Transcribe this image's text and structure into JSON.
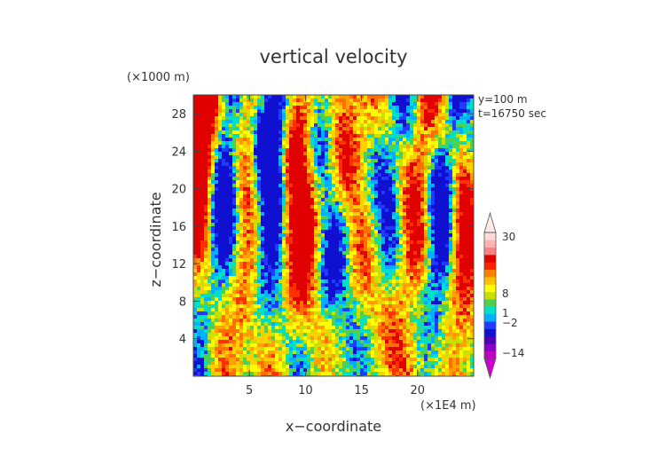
{
  "chart_data": {
    "type": "heatmap",
    "title": "vertical velocity",
    "xlabel": "x−coordinate",
    "ylabel": "z−coordinate",
    "x_unit": "(×1E4 m)",
    "y_unit": "(×1000 m)",
    "annotations": [
      "y=100 m",
      "t=16750 sec"
    ],
    "xlim": [
      0,
      25
    ],
    "ylim": [
      0,
      30
    ],
    "x_ticks": [
      5,
      10,
      15,
      20
    ],
    "x_tick_labels": [
      "5",
      "10",
      "15",
      "20"
    ],
    "y_ticks": [
      4,
      8,
      12,
      16,
      20,
      24,
      28
    ],
    "y_tick_labels": [
      "4",
      "8",
      "12",
      "16",
      "20",
      "24",
      "28"
    ],
    "colorbar": {
      "levels": [
        -14,
        -2,
        1,
        8,
        30
      ],
      "tick_labels": [
        "30",
        "8",
        "1",
        "−2",
        "−14"
      ],
      "colors": [
        "#c000c0",
        "#8a00c8",
        "#4b00b8",
        "#1010d0",
        "#1e3cff",
        "#00b0ff",
        "#00e0c8",
        "#50d050",
        "#c8e000",
        "#ffff00",
        "#ffc000",
        "#ff8000",
        "#ff2000",
        "#e00000",
        "#ff8080",
        "#ffb0b0",
        "#ffd8d8"
      ],
      "extend": "both"
    },
    "grid": false
  }
}
